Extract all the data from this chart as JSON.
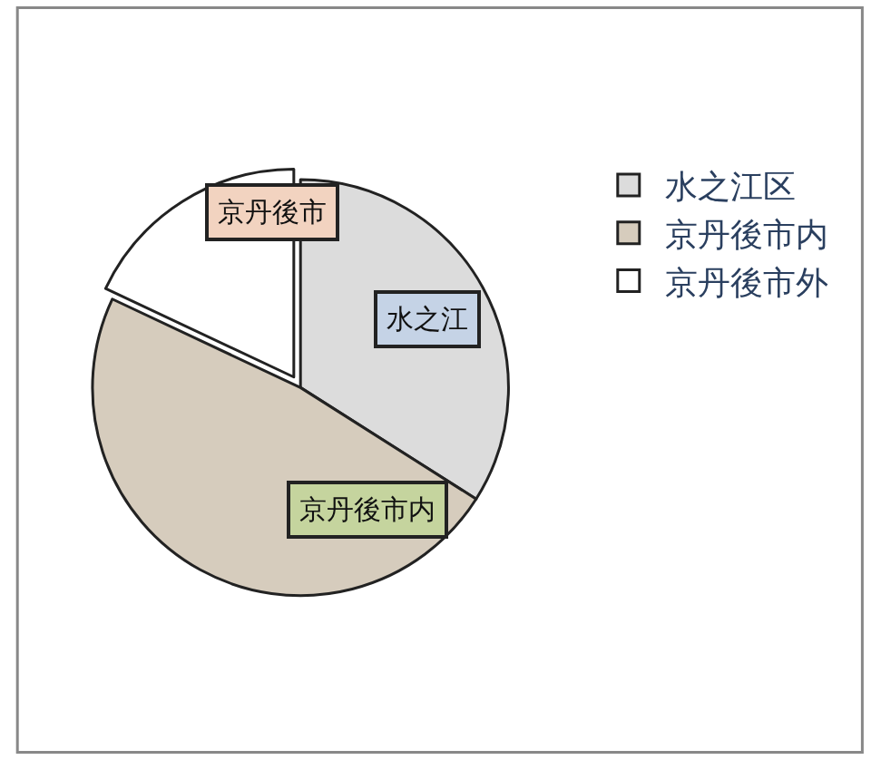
{
  "chart_data": {
    "type": "pie",
    "categories": [
      "水之江区",
      "京丹後市内",
      "京丹後市外"
    ],
    "values": [
      34,
      48,
      18
    ],
    "colors": [
      "#dcdcdc",
      "#d6ccbd",
      "#ffffff"
    ],
    "annotations": [
      "京丹後市",
      "水之江",
      "京丹後市内"
    ],
    "legend": "right"
  }
}
